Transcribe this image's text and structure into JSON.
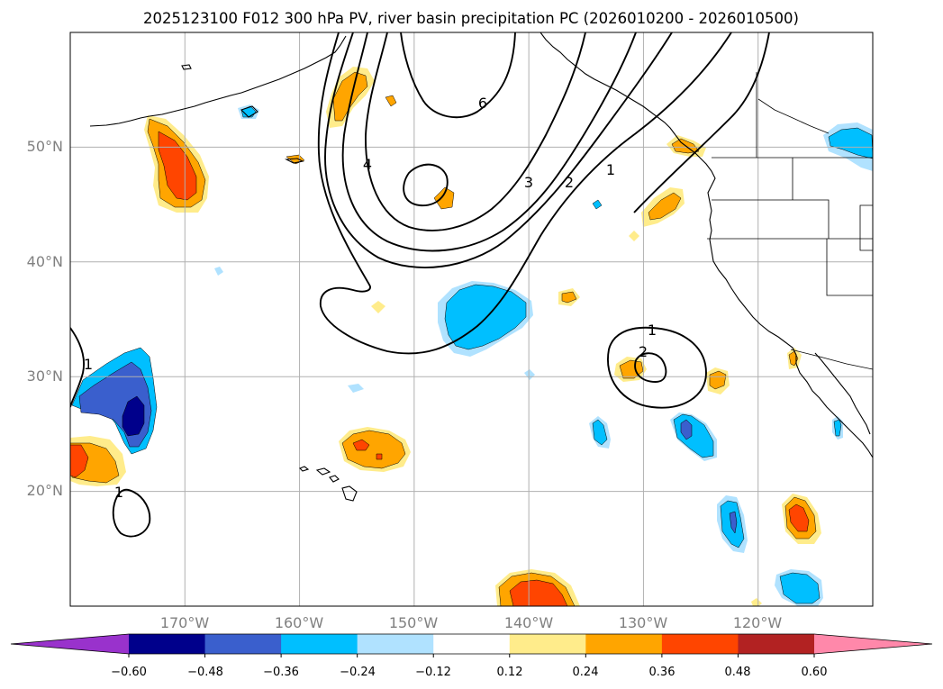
{
  "title": "2025123100 F012 300 hPa PV, river basin precipitation PC (2026010200 - 2026010500)",
  "chart_data": {
    "type": "contour_map",
    "title": "2025123100 F012 300 hPa PV, river basin precipitation PC (2026010200 - 2026010500)",
    "projection": "PlateCarree",
    "lon_range": [
      -180,
      -110
    ],
    "lat_range": [
      10,
      60
    ],
    "lat_ticks": [
      {
        "value": 20,
        "label": "20°N"
      },
      {
        "value": 30,
        "label": "30°N"
      },
      {
        "value": 40,
        "label": "40°N"
      },
      {
        "value": 50,
        "label": "50°N"
      }
    ],
    "lon_ticks": [
      {
        "value": -170,
        "label": "170°W"
      },
      {
        "value": -160,
        "label": "160°W"
      },
      {
        "value": -150,
        "label": "150°W"
      },
      {
        "value": -140,
        "label": "140°W"
      },
      {
        "value": -130,
        "label": "130°W"
      },
      {
        "value": -120,
        "label": "120°W"
      }
    ],
    "grid": true,
    "pv_contour_levels": [
      1,
      2,
      3,
      4,
      5,
      6
    ],
    "pv_contour_labels": [
      "6",
      "4",
      "3",
      "2",
      "1",
      "1",
      "2",
      "1",
      "1"
    ],
    "colorbar": {
      "orientation": "horizontal",
      "extend": "both",
      "boundaries": [
        -0.72,
        -0.6,
        -0.48,
        -0.36,
        -0.24,
        -0.12,
        0.12,
        0.24,
        0.36,
        0.48,
        0.6,
        0.72
      ],
      "tick_labels": [
        "−0.60",
        "−0.48",
        "−0.36",
        "−0.24",
        "−0.12",
        "0.12",
        "0.24",
        "0.36",
        "0.48",
        "0.60"
      ],
      "colors": [
        "#9932cc",
        "#00008b",
        "#3a5fcd",
        "#00bfff",
        "#b0e2ff",
        "#ffffff",
        "#ffec8b",
        "#ffa500",
        "#ff4500",
        "#b22222",
        "#ff88aa"
      ]
    }
  },
  "colors": {
    "y1": "#ffec8b",
    "o": "#ffa500",
    "r": "#ff4500",
    "dr": "#b22222",
    "lb": "#b0e2ff",
    "b": "#00bfff",
    "mb": "#3a5fcd",
    "db": "#00008b"
  }
}
